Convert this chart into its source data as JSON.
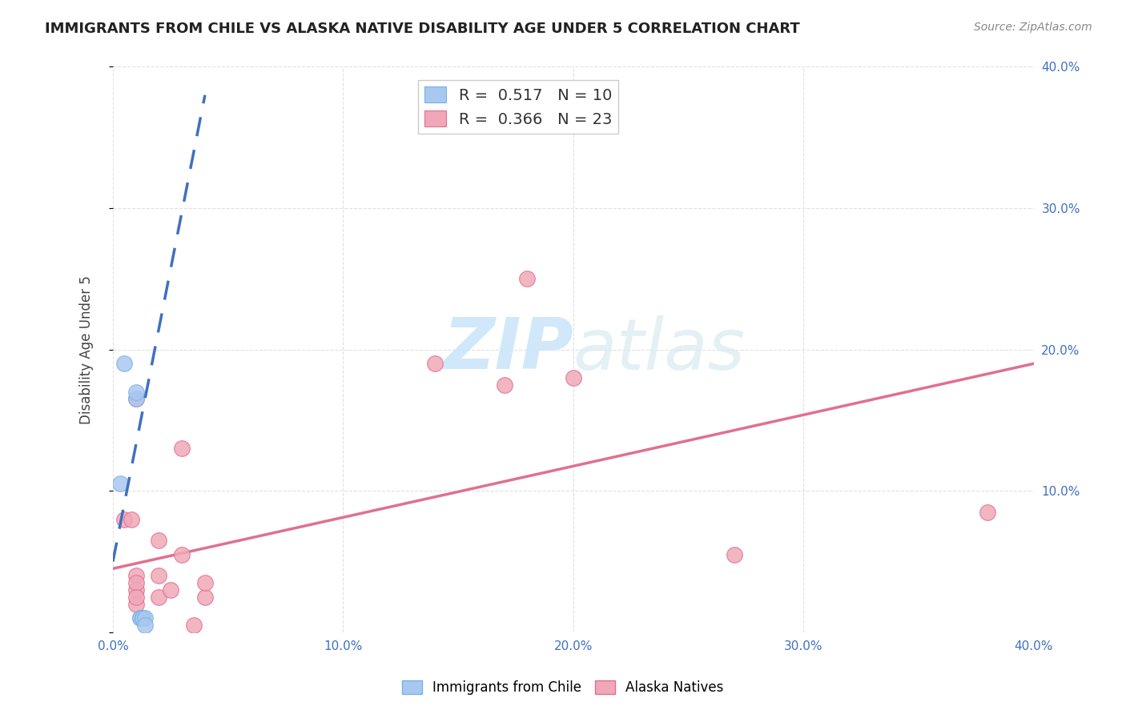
{
  "title": "IMMIGRANTS FROM CHILE VS ALASKA NATIVE DISABILITY AGE UNDER 5 CORRELATION CHART",
  "source": "Source: ZipAtlas.com",
  "ylabel": "Disability Age Under 5",
  "xlim": [
    0.0,
    0.4
  ],
  "ylim": [
    0.0,
    0.4
  ],
  "xtick_vals": [
    0.0,
    0.1,
    0.2,
    0.3,
    0.4
  ],
  "ytick_vals": [
    0.0,
    0.1,
    0.2,
    0.3,
    0.4
  ],
  "ytick_vals_right": [
    0.1,
    0.2,
    0.3,
    0.4
  ],
  "ytick_labels_right": [
    "10.0%",
    "20.0%",
    "30.0%",
    "40.0%"
  ],
  "blue_R": 0.517,
  "blue_N": 10,
  "pink_R": 0.366,
  "pink_N": 23,
  "blue_scatter_x": [
    0.005,
    0.01,
    0.01,
    0.012,
    0.012,
    0.013,
    0.013,
    0.014,
    0.014,
    0.003
  ],
  "blue_scatter_y": [
    0.19,
    0.165,
    0.17,
    0.01,
    0.01,
    0.01,
    0.01,
    0.01,
    0.005,
    0.105
  ],
  "pink_scatter_x": [
    0.005,
    0.008,
    0.01,
    0.01,
    0.01,
    0.02,
    0.02,
    0.03,
    0.14,
    0.17,
    0.18,
    0.2,
    0.38,
    0.27,
    0.01,
    0.01,
    0.01,
    0.02,
    0.025,
    0.03,
    0.04,
    0.04,
    0.035
  ],
  "pink_scatter_y": [
    0.08,
    0.08,
    0.165,
    0.04,
    0.03,
    0.065,
    0.04,
    0.13,
    0.19,
    0.175,
    0.25,
    0.18,
    0.085,
    0.055,
    0.02,
    0.035,
    0.025,
    0.025,
    0.03,
    0.055,
    0.025,
    0.035,
    0.005
  ],
  "blue_line_x": [
    0.0,
    0.04
  ],
  "blue_line_y": [
    0.05,
    0.38
  ],
  "pink_line_x": [
    0.0,
    0.4
  ],
  "pink_line_y": [
    0.045,
    0.19
  ],
  "scatter_blue_color": "#a8c8f0",
  "scatter_blue_edge": "#7ab0e0",
  "scatter_pink_color": "#f0a8b8",
  "scatter_pink_edge": "#e07090",
  "blue_line_color": "#4070c0",
  "pink_line_color": "#e07090",
  "watermark_zip": "ZIP",
  "watermark_atlas": "atlas",
  "background_color": "#ffffff",
  "grid_color": "#e0e0e8",
  "legend_bottom_labels": [
    "Immigrants from Chile",
    "Alaska Natives"
  ]
}
